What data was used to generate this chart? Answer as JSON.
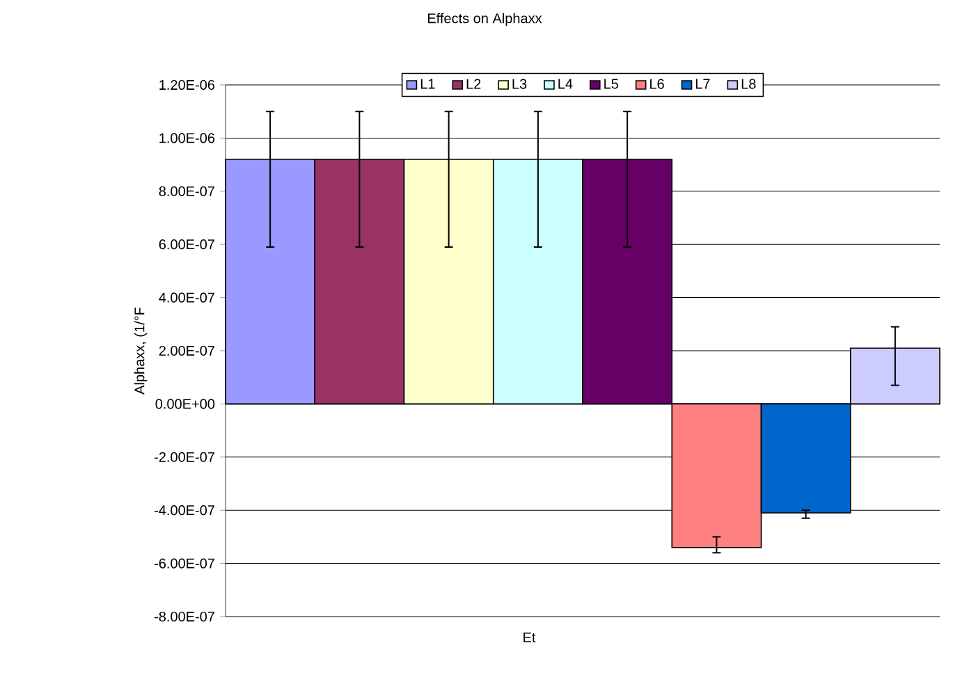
{
  "chart_data": {
    "type": "bar",
    "title": "Effects on Alphaxx",
    "xlabel": "Et",
    "ylabel": "Alphaxx, (1/°F",
    "categories": [
      null
    ],
    "series": [
      {
        "name": "L1",
        "color": "#9999ff",
        "values": [
          9.2e-07
        ],
        "errors": [
          [
            5.9e-07,
            1.1e-06
          ]
        ]
      },
      {
        "name": "L2",
        "color": "#993366",
        "values": [
          9.2e-07
        ],
        "errors": [
          [
            5.9e-07,
            1.1e-06
          ]
        ]
      },
      {
        "name": "L3",
        "color": "#ffffcc",
        "values": [
          9.2e-07
        ],
        "errors": [
          [
            5.9e-07,
            1.1e-06
          ]
        ]
      },
      {
        "name": "L4",
        "color": "#ccffff",
        "values": [
          9.2e-07
        ],
        "errors": [
          [
            5.9e-07,
            1.1e-06
          ]
        ]
      },
      {
        "name": "L5",
        "color": "#660066",
        "values": [
          9.2e-07
        ],
        "errors": [
          [
            5.9e-07,
            1.1e-06
          ]
        ]
      },
      {
        "name": "L6",
        "color": "#ff8080",
        "values": [
          -5.4e-07
        ],
        "errors": [
          [
            -5.6e-07,
            -5e-07
          ]
        ]
      },
      {
        "name": "L7",
        "color": "#0066cc",
        "values": [
          -4.1e-07
        ],
        "errors": [
          [
            -4.3e-07,
            -4e-07
          ]
        ]
      },
      {
        "name": "L8",
        "color": "#ccccff",
        "values": [
          2.1e-07
        ],
        "errors": [
          [
            7e-08,
            2.9e-07
          ]
        ]
      }
    ],
    "ylim": [
      -8e-07,
      1.2e-06
    ],
    "yticks": [
      {
        "value": -8e-07,
        "label": "-8.00E-07"
      },
      {
        "value": -6e-07,
        "label": "-6.00E-07"
      },
      {
        "value": -4e-07,
        "label": "-4.00E-07"
      },
      {
        "value": -2e-07,
        "label": "-2.00E-07"
      },
      {
        "value": 0,
        "label": "0.00E+00"
      },
      {
        "value": 2e-07,
        "label": "2.00E-07"
      },
      {
        "value": 4e-07,
        "label": "4.00E-07"
      },
      {
        "value": 6e-07,
        "label": "6.00E-07"
      },
      {
        "value": 8e-07,
        "label": "8.00E-07"
      },
      {
        "value": 1e-06,
        "label": "1.00E-06"
      },
      {
        "value": 1.2e-06,
        "label": "1.20E-06"
      }
    ],
    "grid": "y",
    "legend": "top"
  }
}
